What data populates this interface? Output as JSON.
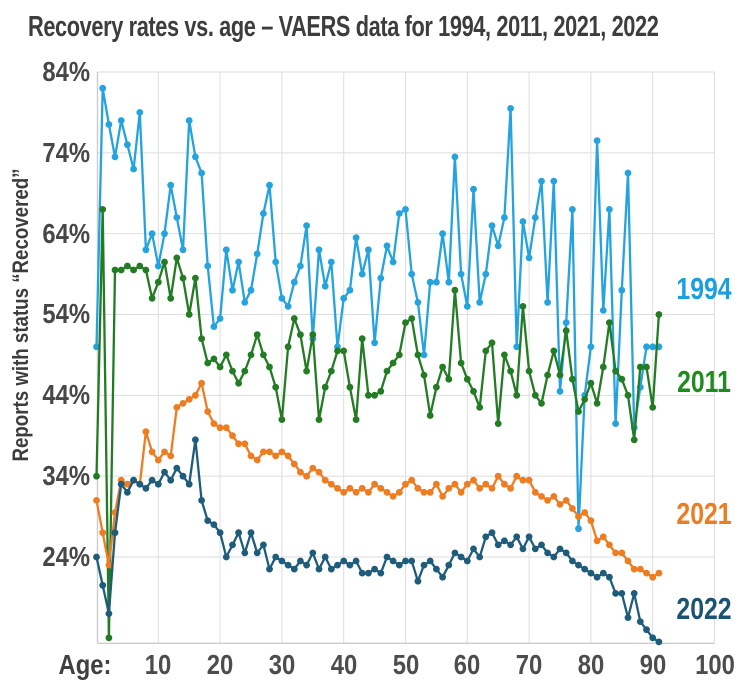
{
  "title": "Recovery rates vs. age – VAERS data for 1994, 2011, 2021, 2022",
  "y_axis": {
    "title": "Reports with status “Recovered”",
    "tick_labels": [
      "84%",
      "74%",
      "64%",
      "54%",
      "44%",
      "34%",
      "24%"
    ],
    "tick_values": [
      84,
      74,
      64,
      54,
      44,
      34,
      24
    ]
  },
  "x_axis": {
    "prefix_label": "Age:",
    "tick_values": [
      10,
      20,
      30,
      40,
      50,
      60,
      70,
      80,
      90,
      100
    ]
  },
  "chart_data": {
    "type": "line",
    "title": "Recovery rates vs. age – VAERS data for 1994, 2011, 2021, 2022",
    "xlabel": "Age",
    "ylabel": "Reports with status “Recovered”",
    "x_description": "age in years, one point per year of age starting at age 0",
    "xlim": [
      0,
      100
    ],
    "ylim_percent": [
      13,
      85
    ],
    "grid": true,
    "legend_position": "right margin, stacked beside each line",
    "marker": "circle",
    "series": [
      {
        "name": "1994",
        "color": "#25A3DE",
        "label_color": "#1B9FDE",
        "values": [
          50,
          82,
          77.5,
          73.5,
          78,
          75,
          72,
          79,
          62,
          64,
          60,
          64,
          70,
          66,
          62,
          78,
          73.5,
          71.5,
          60,
          52.5,
          53.5,
          62,
          57,
          60.5,
          55.5,
          57,
          61.5,
          66.5,
          70,
          60.5,
          56,
          55,
          58,
          60,
          65,
          51,
          62,
          57.5,
          60.5,
          50,
          56,
          57,
          63.5,
          59,
          62,
          50.5,
          58.5,
          62.5,
          60.5,
          66.5,
          67,
          59,
          55.5,
          49,
          58,
          58,
          64,
          58,
          73.5,
          59,
          55,
          69.5,
          55.5,
          59,
          65,
          62.5,
          66,
          79.5,
          50,
          65.5,
          61,
          66,
          70.5,
          55.5,
          70.5,
          44.5,
          53,
          67,
          27.5,
          44,
          50,
          75.5,
          54.5,
          67,
          40.5,
          57,
          71.5,
          40,
          45,
          50,
          50,
          50
        ]
      },
      {
        "name": "2011",
        "color": "#237C23",
        "label_color": "#1E8C1E",
        "values": [
          34,
          67,
          14,
          59.5,
          59.5,
          60,
          59.5,
          60,
          59.5,
          56,
          58,
          60.5,
          56,
          61,
          58.5,
          54,
          58.5,
          51,
          48,
          48.5,
          47.5,
          49,
          47,
          45.5,
          47,
          49,
          51.5,
          49,
          47.5,
          45,
          41,
          50,
          53.5,
          51.5,
          47,
          51.5,
          41,
          45,
          47,
          49.5,
          49.5,
          45,
          41,
          51,
          44,
          44,
          44.5,
          47,
          48,
          49,
          53,
          53.5,
          49,
          46.5,
          41.5,
          45,
          47.5,
          46,
          57,
          48,
          46,
          44.5,
          42.5,
          49.5,
          50.5,
          40.5,
          49,
          47,
          44,
          55,
          47,
          44,
          43,
          46.5,
          49.5,
          46.5,
          52,
          46,
          42,
          43.5,
          45.5,
          43,
          47.5,
          53,
          47,
          46,
          44,
          38.5,
          47.5,
          47.5,
          42.5,
          54
        ]
      },
      {
        "name": "2021",
        "color": "#EE7C21",
        "label_color": "#EE7C21",
        "values": [
          31,
          27,
          23,
          29.5,
          33.5,
          33,
          33.5,
          33,
          39.5,
          37,
          36,
          37,
          36.5,
          42.5,
          43,
          43.5,
          44,
          45.5,
          42,
          40.5,
          40,
          40,
          39,
          38,
          38,
          36.5,
          36,
          37,
          37,
          36.5,
          37,
          36.5,
          35.5,
          34.5,
          34,
          35,
          34.5,
          33.5,
          33,
          32.5,
          32,
          32.5,
          32,
          32.5,
          32,
          33,
          32.5,
          32,
          31.5,
          32,
          33,
          33.5,
          32.5,
          32,
          32,
          33,
          31.5,
          32.5,
          33,
          32,
          33,
          33.5,
          32.5,
          33,
          32.5,
          34,
          33,
          32.5,
          34,
          33.5,
          33.5,
          32,
          31.5,
          31,
          31.5,
          30.5,
          31,
          30,
          29,
          29.5,
          28.5,
          26,
          26.5,
          25.5,
          24.5,
          24.5,
          23.5,
          22.5,
          22.5,
          22,
          21.5,
          22
        ]
      },
      {
        "name": "2022",
        "color": "#1E5C7B",
        "label_color": "#1B5472",
        "values": [
          24,
          20.5,
          17,
          27,
          33,
          32,
          33.5,
          33,
          32.5,
          33.5,
          33,
          34.5,
          33.5,
          35,
          34,
          33,
          38.5,
          31,
          28.5,
          28,
          27,
          24,
          25.5,
          27,
          24.5,
          27,
          24.5,
          25.5,
          22.5,
          24,
          23.5,
          23,
          22.5,
          23.5,
          23,
          24.5,
          22.5,
          24,
          22.5,
          23,
          23.5,
          23,
          23.5,
          22,
          22,
          22.5,
          22,
          24,
          23.5,
          23,
          23.5,
          23.5,
          21,
          23,
          23.5,
          22.5,
          21.5,
          23,
          24.5,
          24,
          23.5,
          25,
          24,
          26.5,
          27,
          25.5,
          26,
          25.5,
          26.5,
          25,
          26.5,
          25,
          25.5,
          24.5,
          24,
          25,
          24.5,
          23.5,
          23,
          22.5,
          22,
          21.5,
          22,
          21.5,
          19.5,
          19.5,
          16.5,
          19.5,
          16,
          15,
          14,
          13.5
        ]
      }
    ]
  }
}
